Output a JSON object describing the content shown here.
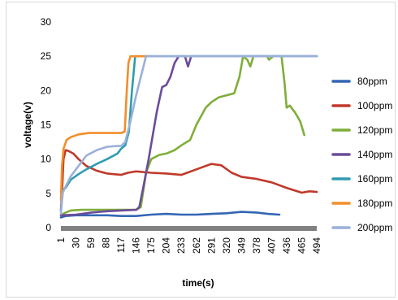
{
  "chart_data": {
    "type": "line",
    "title": "",
    "xlabel": "time(s)",
    "ylabel": "voltage(v)",
    "ylim": [
      0,
      30
    ],
    "yticks": [
      0,
      5,
      10,
      15,
      20,
      25,
      30
    ],
    "xlim": [
      1,
      494
    ],
    "xticks": [
      1,
      30,
      59,
      88,
      117,
      146,
      175,
      204,
      233,
      262,
      291,
      320,
      349,
      378,
      407,
      436,
      465,
      494
    ],
    "grid": false,
    "legend": "right",
    "series": [
      {
        "name": "80ppm",
        "color": "#3366b3",
        "points": [
          [
            1,
            1.5
          ],
          [
            10,
            1.7
          ],
          [
            30,
            1.8
          ],
          [
            60,
            1.8
          ],
          [
            90,
            1.8
          ],
          [
            117,
            1.7
          ],
          [
            146,
            1.7
          ],
          [
            175,
            1.9
          ],
          [
            204,
            2.0
          ],
          [
            233,
            1.9
          ],
          [
            262,
            1.9
          ],
          [
            291,
            2.0
          ],
          [
            320,
            2.1
          ],
          [
            349,
            2.3
          ],
          [
            378,
            2.2
          ],
          [
            400,
            2.0
          ],
          [
            422,
            1.9
          ]
        ]
      },
      {
        "name": "100ppm",
        "color": "#c0392b",
        "points": [
          [
            1,
            2.5
          ],
          [
            3,
            5
          ],
          [
            6,
            10
          ],
          [
            10,
            11.3
          ],
          [
            15,
            11.2
          ],
          [
            25,
            10.8
          ],
          [
            35,
            10.0
          ],
          [
            50,
            9.0
          ],
          [
            70,
            8.3
          ],
          [
            90,
            7.9
          ],
          [
            117,
            7.7
          ],
          [
            130,
            8.0
          ],
          [
            146,
            8.2
          ],
          [
            175,
            8.0
          ],
          [
            204,
            7.9
          ],
          [
            233,
            7.7
          ],
          [
            262,
            8.5
          ],
          [
            291,
            9.3
          ],
          [
            310,
            9.1
          ],
          [
            330,
            8.0
          ],
          [
            349,
            7.4
          ],
          [
            378,
            7.1
          ],
          [
            407,
            6.6
          ],
          [
            436,
            5.8
          ],
          [
            465,
            5.1
          ],
          [
            480,
            5.3
          ],
          [
            494,
            5.2
          ]
        ]
      },
      {
        "name": "120ppm",
        "color": "#7fae3a",
        "points": [
          [
            1,
            1.8
          ],
          [
            10,
            2.2
          ],
          [
            20,
            2.5
          ],
          [
            40,
            2.6
          ],
          [
            60,
            2.6
          ],
          [
            80,
            2.6
          ],
          [
            100,
            2.6
          ],
          [
            117,
            2.6
          ],
          [
            130,
            2.6
          ],
          [
            146,
            2.6
          ],
          [
            155,
            3
          ],
          [
            165,
            8
          ],
          [
            175,
            10.0
          ],
          [
            190,
            10.6
          ],
          [
            204,
            10.8
          ],
          [
            220,
            11.3
          ],
          [
            233,
            12.0
          ],
          [
            250,
            12.8
          ],
          [
            262,
            15.0
          ],
          [
            280,
            17.5
          ],
          [
            291,
            18.3
          ],
          [
            305,
            19.0
          ],
          [
            320,
            19.3
          ],
          [
            335,
            19.6
          ],
          [
            345,
            22
          ],
          [
            352,
            25
          ],
          [
            360,
            24.5
          ],
          [
            366,
            23.5
          ],
          [
            372,
            25
          ],
          [
            385,
            25
          ],
          [
            398,
            25
          ],
          [
            402,
            24.5
          ],
          [
            410,
            25
          ],
          [
            420,
            25
          ],
          [
            426,
            25
          ],
          [
            432,
            21
          ],
          [
            436,
            17.5
          ],
          [
            442,
            17.8
          ],
          [
            452,
            16.8
          ],
          [
            462,
            15.5
          ],
          [
            470,
            13.5
          ]
        ]
      },
      {
        "name": "140ppm",
        "color": "#6b4c9a",
        "points": [
          [
            1,
            1.8
          ],
          [
            30,
            1.9
          ],
          [
            60,
            2.2
          ],
          [
            90,
            2.4
          ],
          [
            117,
            2.5
          ],
          [
            146,
            2.6
          ],
          [
            152,
            3
          ],
          [
            160,
            6
          ],
          [
            170,
            10
          ],
          [
            178,
            13.5
          ],
          [
            186,
            17
          ],
          [
            196,
            20.5
          ],
          [
            204,
            20.8
          ],
          [
            212,
            22
          ],
          [
            220,
            24
          ],
          [
            228,
            25
          ],
          [
            240,
            25
          ],
          [
            246,
            23.5
          ],
          [
            252,
            25
          ],
          [
            258,
            25
          ],
          [
            264,
            25
          ],
          [
            494,
            25
          ]
        ]
      },
      {
        "name": "160ppm",
        "color": "#2e9bb0",
        "points": [
          [
            1,
            2.5
          ],
          [
            3,
            4
          ],
          [
            5,
            5.5
          ],
          [
            10,
            5.8
          ],
          [
            20,
            7.0
          ],
          [
            35,
            7.8
          ],
          [
            50,
            8.5
          ],
          [
            70,
            9.3
          ],
          [
            90,
            10.0
          ],
          [
            110,
            10.8
          ],
          [
            117,
            11.5
          ],
          [
            125,
            12
          ],
          [
            132,
            14
          ],
          [
            138,
            20
          ],
          [
            144,
            25
          ],
          [
            494,
            25
          ]
        ]
      },
      {
        "name": "180ppm",
        "color": "#f28e2b",
        "points": [
          [
            1,
            4
          ],
          [
            3,
            9
          ],
          [
            6,
            11.5
          ],
          [
            12,
            12.8
          ],
          [
            20,
            13.2
          ],
          [
            35,
            13.6
          ],
          [
            55,
            13.8
          ],
          [
            80,
            13.8
          ],
          [
            100,
            13.8
          ],
          [
            117,
            13.8
          ],
          [
            124,
            14
          ],
          [
            128,
            20
          ],
          [
            131,
            24
          ],
          [
            135,
            25
          ],
          [
            175,
            25
          ]
        ]
      },
      {
        "name": "200ppm",
        "color": "#9bb0d9",
        "points": [
          [
            1,
            2
          ],
          [
            4,
            5
          ],
          [
            10,
            6.0
          ],
          [
            20,
            7.5
          ],
          [
            35,
            9.0
          ],
          [
            50,
            10.5
          ],
          [
            70,
            11.3
          ],
          [
            90,
            11.8
          ],
          [
            110,
            11.9
          ],
          [
            117,
            11.9
          ],
          [
            125,
            12.5
          ],
          [
            135,
            15.5
          ],
          [
            145,
            19
          ],
          [
            155,
            22
          ],
          [
            165,
            25
          ],
          [
            494,
            25
          ]
        ]
      }
    ]
  }
}
